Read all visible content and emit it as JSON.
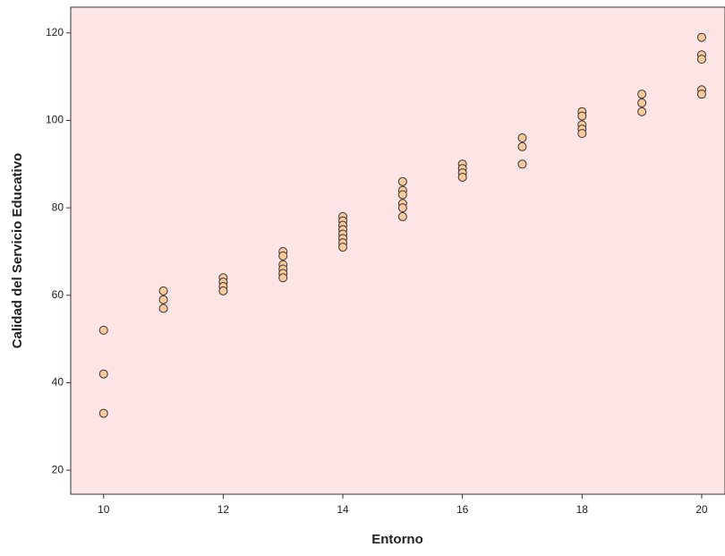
{
  "chart_data": {
    "type": "scatter",
    "x_label": "Entorno",
    "y_label": "Calidad del Servicio Educativo",
    "series": [
      {
        "color": "#f9c89b",
        "x": [
          10,
          10,
          10,
          11,
          11,
          11,
          12,
          12,
          12,
          12,
          13,
          13,
          13,
          13,
          13,
          13,
          14,
          14,
          14,
          14,
          14,
          14,
          14,
          14,
          15,
          15,
          15,
          15,
          15,
          15,
          16,
          16,
          16,
          16,
          17,
          17,
          17,
          18,
          18,
          18,
          18,
          18,
          19,
          19,
          19,
          20,
          20,
          20,
          20,
          20
        ],
        "y": [
          52,
          42,
          33,
          61,
          59,
          57,
          64,
          63,
          62,
          61,
          70,
          69,
          67,
          66,
          65,
          64,
          78,
          77,
          76,
          75,
          74,
          73,
          72,
          71,
          86,
          84,
          83,
          81,
          80,
          78,
          90,
          89,
          88,
          87,
          96,
          94,
          90,
          102,
          101,
          99,
          98,
          97,
          106,
          104,
          102,
          119,
          115,
          114,
          107,
          106
        ]
      }
    ],
    "xlim": [
      9.45,
      20.39
    ],
    "ylim": [
      14.5,
      125.9
    ],
    "xticks": [
      10,
      12,
      14,
      16,
      18,
      20
    ],
    "yticks": [
      20,
      40,
      60,
      80,
      100,
      120
    ],
    "background": "#fde5e5"
  }
}
